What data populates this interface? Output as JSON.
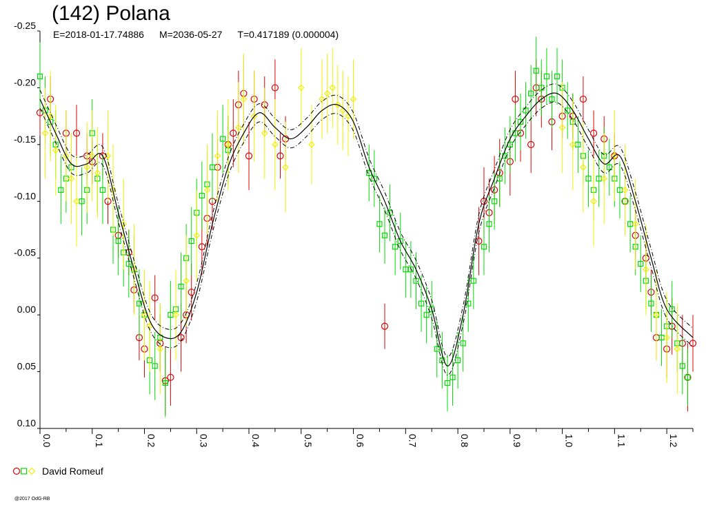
{
  "header": {
    "title": "(142) Polana",
    "epoch": "E=2018-01-17.74886",
    "mid": "M=2036-05-27",
    "period": "T=0.417189 (0.000004)"
  },
  "legend": {
    "label": "David Romeuf"
  },
  "footer": {
    "copyright": "@2017 OdG-RB"
  },
  "colors": {
    "red": "#dd0000",
    "green": "#00dd00",
    "yellow": "#f0f000",
    "curve": "#000000",
    "axis": "#000000"
  },
  "chart_data": {
    "type": "scatter",
    "title": "(142) Polana",
    "xlabel": "",
    "ylabel": "",
    "xlim": [
      0,
      1.25
    ],
    "ylim": [
      -0.25,
      0.1
    ],
    "y_inverted": true,
    "x_ticks": [
      "0.0",
      "0.1",
      "0.2",
      "0.3",
      "0.4",
      "0.5",
      "0.6",
      "0.7",
      "0.8",
      "0.9",
      "1.0",
      "1.1",
      "1.2"
    ],
    "y_ticks": [
      "-0.25",
      "-0.20",
      "-0.15",
      "-0.10",
      "-0.05",
      "0.00",
      "0.05",
      "0.10"
    ],
    "model_curve": {
      "x": [
        0.0,
        0.03,
        0.06,
        0.09,
        0.12,
        0.15,
        0.18,
        0.21,
        0.24,
        0.27,
        0.3,
        0.33,
        0.36,
        0.39,
        0.42,
        0.45,
        0.48,
        0.51,
        0.54,
        0.57,
        0.6,
        0.63,
        0.66,
        0.69,
        0.72,
        0.75,
        0.78,
        0.81,
        0.84,
        0.87,
        0.9,
        0.93,
        0.96,
        0.99,
        1.02,
        1.05,
        1.08,
        1.11,
        1.14,
        1.17,
        1.2,
        1.25
      ],
      "y": [
        -0.19,
        -0.16,
        -0.133,
        -0.133,
        -0.14,
        -0.09,
        -0.04,
        0.005,
        0.02,
        0.015,
        -0.02,
        -0.08,
        -0.13,
        -0.16,
        -0.178,
        -0.165,
        -0.155,
        -0.165,
        -0.18,
        -0.185,
        -0.17,
        -0.13,
        -0.1,
        -0.065,
        -0.04,
        -0.005,
        0.045,
        0.0,
        -0.08,
        -0.12,
        -0.155,
        -0.175,
        -0.19,
        -0.195,
        -0.18,
        -0.155,
        -0.133,
        -0.14,
        -0.1,
        -0.05,
        -0.005,
        0.02
      ]
    },
    "curve_band": 0.008,
    "series": [
      {
        "name": "David Romeuf",
        "marker": "circle",
        "color": "red",
        "points": [
          [
            0.0,
            -0.178,
            0.02
          ],
          [
            0.02,
            -0.19,
            0.02
          ],
          [
            0.05,
            -0.16,
            0.02
          ],
          [
            0.07,
            -0.16,
            0.025
          ],
          [
            0.09,
            -0.14,
            0.02
          ],
          [
            0.1,
            -0.135,
            0.02
          ],
          [
            0.12,
            -0.14,
            0.02
          ],
          [
            0.13,
            -0.1,
            0.02
          ],
          [
            0.15,
            -0.07,
            0.02
          ],
          [
            0.17,
            -0.055,
            0.02
          ],
          [
            0.18,
            -0.022,
            0.02
          ],
          [
            0.19,
            0.02,
            0.02
          ],
          [
            0.2,
            0.03,
            0.025
          ],
          [
            0.22,
            -0.015,
            0.02
          ],
          [
            0.23,
            0.025,
            0.025
          ],
          [
            0.24,
            0.058,
            0.03
          ],
          [
            0.25,
            0.055,
            0.025
          ],
          [
            0.27,
            0.02,
            0.03
          ],
          [
            0.28,
            0.0,
            0.025
          ],
          [
            0.29,
            -0.02,
            0.025
          ],
          [
            0.31,
            -0.06,
            0.025
          ],
          [
            0.32,
            -0.085,
            0.025
          ],
          [
            0.33,
            -0.1,
            0.025
          ],
          [
            0.34,
            -0.13,
            0.025
          ],
          [
            0.36,
            -0.15,
            0.025
          ],
          [
            0.37,
            -0.16,
            0.03
          ],
          [
            0.38,
            -0.185,
            0.03
          ],
          [
            0.39,
            -0.195,
            0.03
          ],
          [
            0.4,
            -0.14,
            0.03
          ],
          [
            0.41,
            -0.19,
            0.025
          ],
          [
            0.43,
            -0.185,
            0.025
          ],
          [
            0.45,
            -0.2,
            0.025
          ],
          [
            0.46,
            -0.14,
            0.02
          ],
          [
            0.47,
            -0.155,
            0.02
          ],
          [
            0.66,
            0.01,
            0.02
          ],
          [
            0.84,
            -0.065,
            0.03
          ],
          [
            0.85,
            -0.1,
            0.03
          ],
          [
            0.86,
            -0.09,
            0.03
          ],
          [
            0.87,
            -0.11,
            0.03
          ],
          [
            0.88,
            -0.125,
            0.03
          ],
          [
            0.9,
            -0.135,
            0.03
          ],
          [
            0.91,
            -0.19,
            0.025
          ],
          [
            0.92,
            -0.16,
            0.025
          ],
          [
            0.94,
            -0.15,
            0.025
          ],
          [
            0.95,
            -0.2,
            0.025
          ],
          [
            0.96,
            -0.19,
            0.025
          ],
          [
            0.98,
            -0.17,
            0.025
          ],
          [
            1.0,
            -0.175,
            0.02
          ],
          [
            1.02,
            -0.175,
            0.02
          ],
          [
            1.04,
            -0.19,
            0.02
          ],
          [
            1.06,
            -0.16,
            0.02
          ],
          [
            1.08,
            -0.155,
            0.02
          ],
          [
            1.1,
            -0.14,
            0.02
          ],
          [
            1.12,
            -0.1,
            0.02
          ],
          [
            1.14,
            -0.07,
            0.02
          ],
          [
            1.16,
            -0.05,
            0.02
          ],
          [
            1.17,
            -0.02,
            0.02
          ],
          [
            1.18,
            0.02,
            0.02
          ],
          [
            1.2,
            0.03,
            0.025
          ],
          [
            1.21,
            0.01,
            0.025
          ],
          [
            1.23,
            0.025,
            0.025
          ],
          [
            1.24,
            0.055,
            0.03
          ],
          [
            1.25,
            0.025,
            0.025
          ]
        ]
      },
      {
        "name": "",
        "marker": "square",
        "color": "green",
        "points": [
          [
            0.0,
            -0.21,
            0.03
          ],
          [
            0.01,
            -0.18,
            0.03
          ],
          [
            0.02,
            -0.17,
            0.03
          ],
          [
            0.03,
            -0.15,
            0.03
          ],
          [
            0.04,
            -0.11,
            0.03
          ],
          [
            0.05,
            -0.12,
            0.03
          ],
          [
            0.06,
            -0.13,
            0.03
          ],
          [
            0.08,
            -0.1,
            0.03
          ],
          [
            0.09,
            -0.11,
            0.03
          ],
          [
            0.1,
            -0.16,
            0.03
          ],
          [
            0.11,
            -0.12,
            0.03
          ],
          [
            0.12,
            -0.11,
            0.03
          ],
          [
            0.14,
            -0.075,
            0.03
          ],
          [
            0.15,
            -0.065,
            0.03
          ],
          [
            0.16,
            -0.055,
            0.03
          ],
          [
            0.17,
            -0.045,
            0.03
          ],
          [
            0.18,
            -0.04,
            0.03
          ],
          [
            0.19,
            -0.01,
            0.03
          ],
          [
            0.2,
            0.0,
            0.03
          ],
          [
            0.21,
            0.04,
            0.03
          ],
          [
            0.22,
            0.045,
            0.03
          ],
          [
            0.23,
            0.02,
            0.03
          ],
          [
            0.24,
            0.06,
            0.03
          ],
          [
            0.25,
            0.0,
            0.03
          ],
          [
            0.26,
            -0.005,
            0.03
          ],
          [
            0.27,
            -0.025,
            0.03
          ],
          [
            0.28,
            -0.05,
            0.03
          ],
          [
            0.29,
            -0.065,
            0.03
          ],
          [
            0.3,
            -0.09,
            0.03
          ],
          [
            0.31,
            -0.105,
            0.03
          ],
          [
            0.32,
            -0.115,
            0.03
          ],
          [
            0.33,
            -0.13,
            0.03
          ],
          [
            0.35,
            -0.155,
            0.03
          ],
          [
            0.36,
            -0.145,
            0.03
          ],
          [
            0.63,
            -0.125,
            0.025
          ],
          [
            0.64,
            -0.12,
            0.025
          ],
          [
            0.65,
            -0.08,
            0.025
          ],
          [
            0.66,
            -0.07,
            0.025
          ],
          [
            0.67,
            -0.09,
            0.025
          ],
          [
            0.68,
            -0.06,
            0.025
          ],
          [
            0.69,
            -0.065,
            0.025
          ],
          [
            0.7,
            -0.04,
            0.025
          ],
          [
            0.71,
            -0.04,
            0.025
          ],
          [
            0.72,
            -0.03,
            0.025
          ],
          [
            0.73,
            -0.01,
            0.025
          ],
          [
            0.74,
            0.0,
            0.025
          ],
          [
            0.75,
            -0.005,
            0.025
          ],
          [
            0.76,
            0.03,
            0.025
          ],
          [
            0.77,
            0.04,
            0.025
          ],
          [
            0.78,
            0.06,
            0.025
          ],
          [
            0.79,
            0.055,
            0.025
          ],
          [
            0.8,
            0.04,
            0.025
          ],
          [
            0.81,
            0.025,
            0.025
          ],
          [
            0.82,
            -0.01,
            0.025
          ],
          [
            0.83,
            -0.03,
            0.025
          ],
          [
            0.85,
            -0.06,
            0.025
          ],
          [
            0.86,
            -0.08,
            0.025
          ],
          [
            0.87,
            -0.1,
            0.025
          ],
          [
            0.88,
            -0.12,
            0.025
          ],
          [
            0.89,
            -0.14,
            0.025
          ],
          [
            0.9,
            -0.15,
            0.025
          ],
          [
            0.91,
            -0.16,
            0.025
          ],
          [
            0.92,
            -0.17,
            0.025
          ],
          [
            0.93,
            -0.18,
            0.025
          ],
          [
            0.94,
            -0.195,
            0.025
          ],
          [
            0.95,
            -0.215,
            0.03
          ],
          [
            0.96,
            -0.2,
            0.025
          ],
          [
            0.97,
            -0.21,
            0.025
          ],
          [
            0.98,
            -0.19,
            0.025
          ],
          [
            0.99,
            -0.21,
            0.025
          ],
          [
            1.0,
            -0.2,
            0.025
          ],
          [
            1.01,
            -0.18,
            0.025
          ],
          [
            1.02,
            -0.17,
            0.025
          ],
          [
            1.03,
            -0.15,
            0.025
          ],
          [
            1.04,
            -0.14,
            0.025
          ],
          [
            1.05,
            -0.12,
            0.025
          ],
          [
            1.06,
            -0.11,
            0.025
          ],
          [
            1.07,
            -0.12,
            0.025
          ],
          [
            1.08,
            -0.14,
            0.025
          ],
          [
            1.09,
            -0.13,
            0.025
          ],
          [
            1.1,
            -0.12,
            0.025
          ],
          [
            1.11,
            -0.11,
            0.025
          ],
          [
            1.12,
            -0.1,
            0.025
          ],
          [
            1.13,
            -0.08,
            0.025
          ],
          [
            1.14,
            -0.06,
            0.025
          ],
          [
            1.15,
            -0.045,
            0.025
          ],
          [
            1.16,
            -0.03,
            0.025
          ],
          [
            1.17,
            -0.01,
            0.025
          ],
          [
            1.18,
            0.0,
            0.025
          ],
          [
            1.19,
            0.02,
            0.025
          ],
          [
            1.2,
            0.01,
            0.025
          ],
          [
            1.21,
            -0.005,
            0.025
          ],
          [
            1.22,
            0.025,
            0.025
          ],
          [
            1.23,
            0.045,
            0.025
          ],
          [
            1.24,
            0.055,
            0.025
          ]
        ]
      },
      {
        "name": "",
        "marker": "diamond",
        "color": "yellow",
        "points": [
          [
            0.01,
            -0.16,
            0.04
          ],
          [
            0.02,
            -0.175,
            0.04
          ],
          [
            0.03,
            -0.145,
            0.04
          ],
          [
            0.05,
            -0.14,
            0.04
          ],
          [
            0.06,
            -0.12,
            0.04
          ],
          [
            0.07,
            -0.1,
            0.04
          ],
          [
            0.09,
            -0.13,
            0.04
          ],
          [
            0.1,
            -0.14,
            0.04
          ],
          [
            0.11,
            -0.125,
            0.04
          ],
          [
            0.13,
            -0.14,
            0.04
          ],
          [
            0.14,
            -0.11,
            0.04
          ],
          [
            0.16,
            -0.08,
            0.04
          ],
          [
            0.18,
            -0.04,
            0.04
          ],
          [
            0.2,
            0.0,
            0.04
          ],
          [
            0.21,
            0.01,
            0.04
          ],
          [
            0.23,
            0.03,
            0.04
          ],
          [
            0.26,
            0.0,
            0.04
          ],
          [
            0.28,
            -0.03,
            0.04
          ],
          [
            0.3,
            -0.07,
            0.04
          ],
          [
            0.32,
            -0.11,
            0.04
          ],
          [
            0.34,
            -0.14,
            0.04
          ],
          [
            0.36,
            -0.15,
            0.04
          ],
          [
            0.38,
            -0.165,
            0.04
          ],
          [
            0.39,
            -0.19,
            0.04
          ],
          [
            0.41,
            -0.175,
            0.04
          ],
          [
            0.43,
            -0.16,
            0.04
          ],
          [
            0.45,
            -0.15,
            0.04
          ],
          [
            0.47,
            -0.13,
            0.04
          ],
          [
            0.5,
            -0.2,
            0.035
          ],
          [
            0.52,
            -0.15,
            0.035
          ],
          [
            0.54,
            -0.19,
            0.035
          ],
          [
            0.55,
            -0.195,
            0.035
          ],
          [
            0.56,
            -0.2,
            0.035
          ],
          [
            0.57,
            -0.185,
            0.035
          ],
          [
            0.58,
            -0.18,
            0.035
          ],
          [
            0.59,
            -0.175,
            0.035
          ],
          [
            0.6,
            -0.19,
            0.035
          ],
          [
            1.0,
            -0.165,
            0.04
          ],
          [
            1.02,
            -0.15,
            0.04
          ],
          [
            1.04,
            -0.13,
            0.04
          ],
          [
            1.06,
            -0.1,
            0.04
          ],
          [
            1.08,
            -0.12,
            0.04
          ],
          [
            1.1,
            -0.14,
            0.04
          ],
          [
            1.12,
            -0.11,
            0.04
          ],
          [
            1.14,
            -0.08,
            0.04
          ],
          [
            1.16,
            -0.04,
            0.04
          ],
          [
            1.18,
            0.0,
            0.04
          ],
          [
            1.2,
            0.02,
            0.04
          ],
          [
            1.22,
            0.03,
            0.04
          ]
        ]
      }
    ]
  }
}
